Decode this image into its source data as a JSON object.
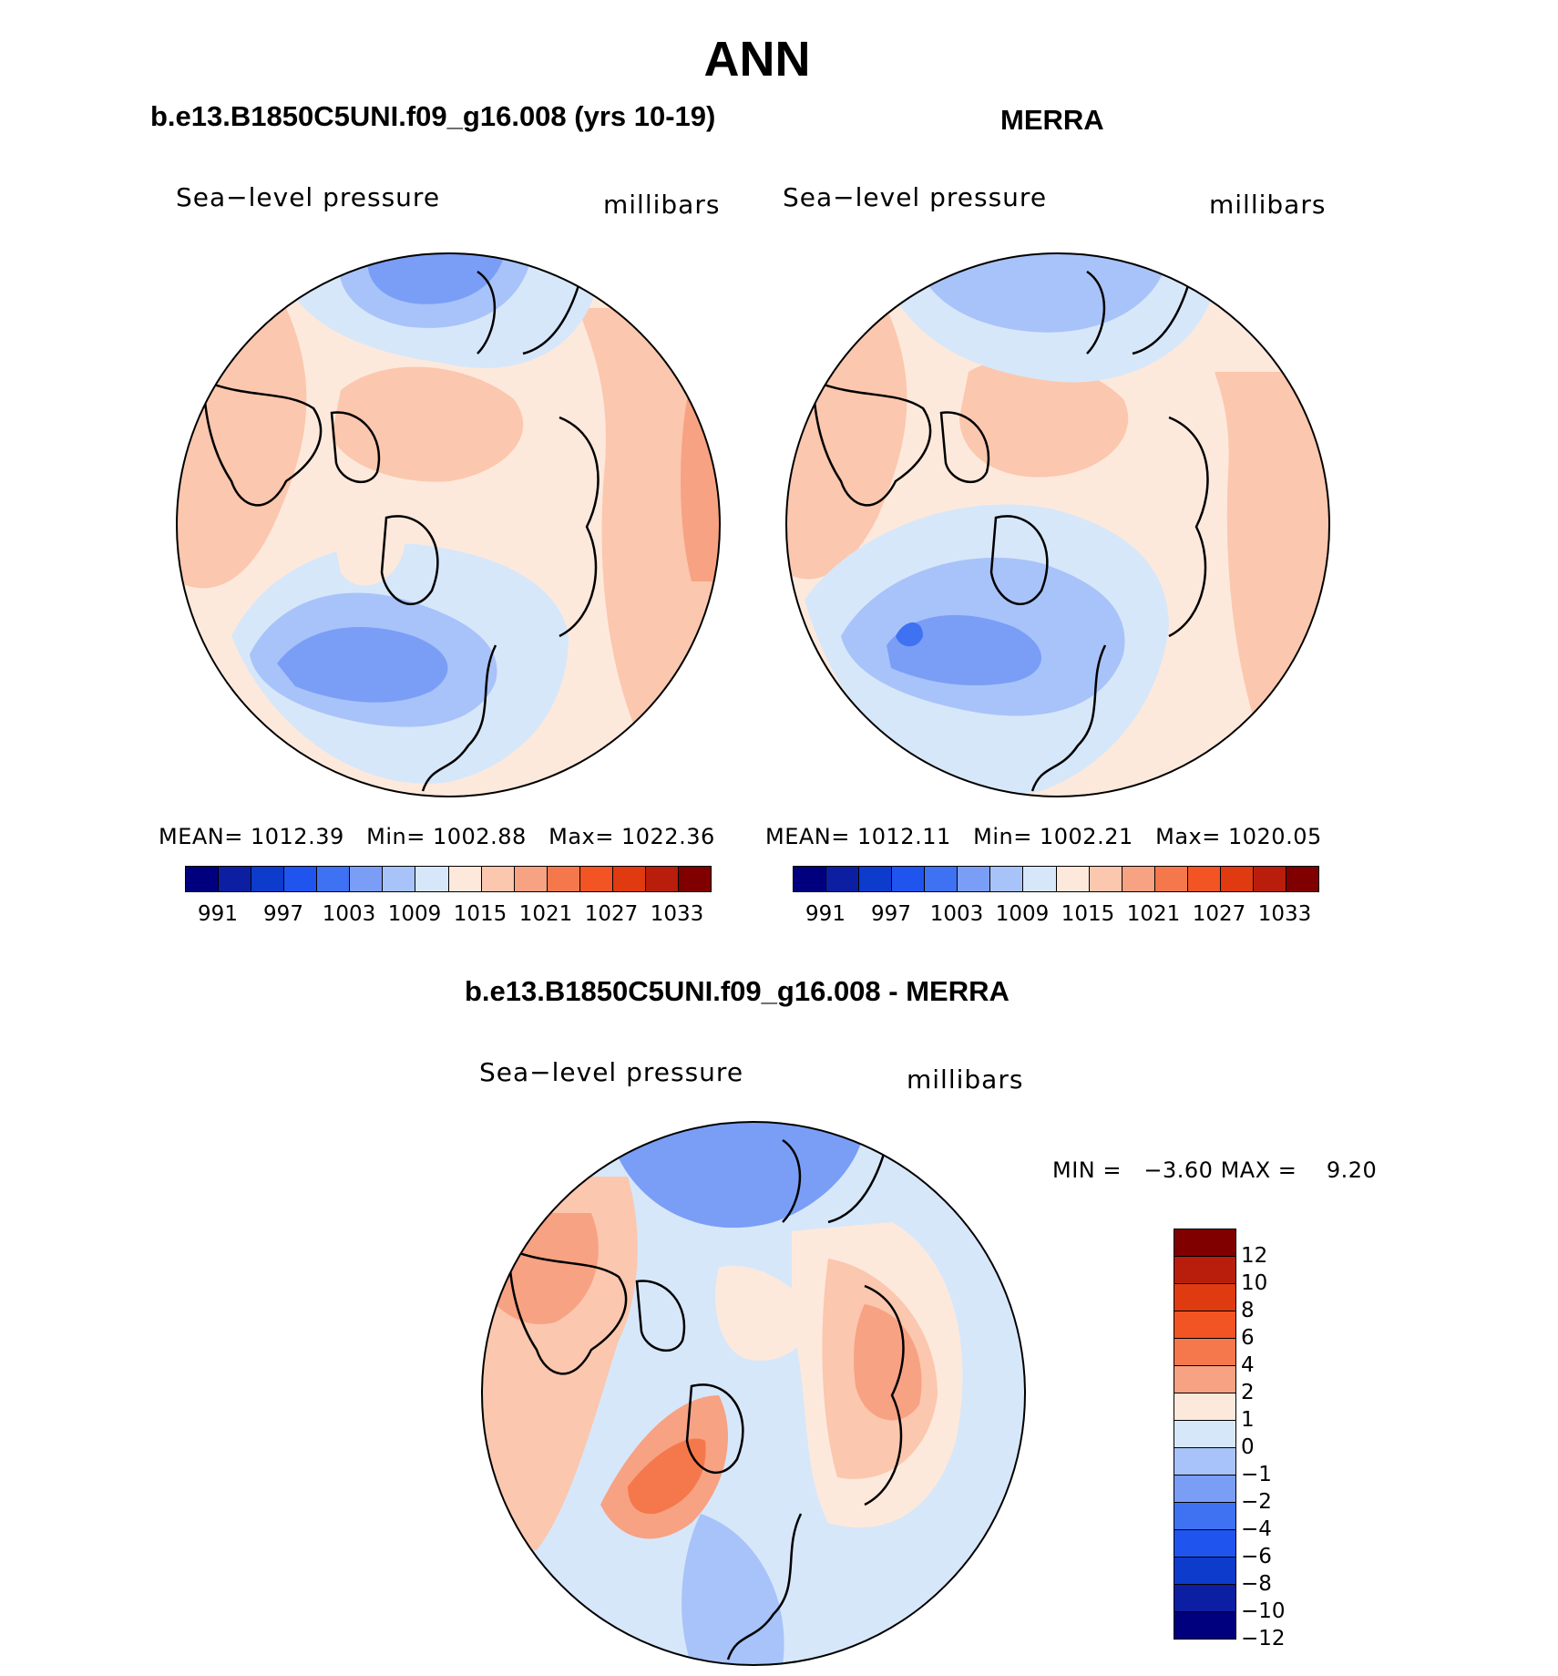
{
  "title": "ANN",
  "panels": [
    {
      "title": "b.e13.B1850C5UNI.f09_g16.008 (yrs 10-19)",
      "variable": "Sea−level pressure",
      "units": "millibars",
      "stats": {
        "mean_label": "MEAN=",
        "mean": "1012.39",
        "min_label": "Min=",
        "min": "1002.88",
        "max_label": "Max=",
        "max": "1022.36"
      }
    },
    {
      "title": "MERRA",
      "variable": "Sea−level pressure",
      "units": "millibars",
      "stats": {
        "mean_label": "MEAN=",
        "mean": "1012.11",
        "min_label": "Min=",
        "min": "1002.21",
        "max_label": "Max=",
        "max": "1020.05"
      }
    }
  ],
  "abs_colorbar": {
    "colors": [
      "#00007f",
      "#0c1fa3",
      "#0d3bcc",
      "#1f55ee",
      "#3f72f2",
      "#7a9ef6",
      "#a8c3f9",
      "#d7e7fa",
      "#fde9dc",
      "#fbc7ae",
      "#f7a283",
      "#f5784c",
      "#f25423",
      "#e03b10",
      "#b81e0b",
      "#800000"
    ],
    "labels": [
      "991",
      "997",
      "1003",
      "1009",
      "1015",
      "1021",
      "1027",
      "1033"
    ]
  },
  "diff_panel": {
    "title": "b.e13.B1850C5UNI.f09_g16.008 - MERRA",
    "variable": "Sea−level pressure",
    "units": "millibars",
    "min_label": "MIN =",
    "min": "−3.60",
    "max_label": "MAX =",
    "max": "9.20"
  },
  "diff_colorbar": {
    "colors": [
      "#800000",
      "#b81e0b",
      "#e03b10",
      "#f25423",
      "#f5784c",
      "#f7a283",
      "#fde9dc",
      "#d7e7fa",
      "#a8c3f9",
      "#7a9ef6",
      "#3f72f2",
      "#1f55ee",
      "#0d3bcc",
      "#0c1fa3",
      "#00007f"
    ],
    "labels": [
      "12",
      "10",
      "8",
      "6",
      "4",
      "2",
      "1",
      "0",
      "−1",
      "−2",
      "−4",
      "−6",
      "−8",
      "−10",
      "−12"
    ]
  },
  "chart_data": [
    {
      "type": "heatmap",
      "title": "b.e13.B1850C5UNI.f09_g16.008 (yrs 10-19)",
      "field": "Sea-level pressure",
      "units": "millibars",
      "projection": "north polar stereographic",
      "mean": 1012.39,
      "min": 1002.88,
      "max": 1022.36,
      "levels": [
        991,
        994,
        997,
        1000,
        1003,
        1006,
        1009,
        1012,
        1015,
        1018,
        1021,
        1024,
        1027,
        1030,
        1033
      ]
    },
    {
      "type": "heatmap",
      "title": "MERRA",
      "field": "Sea-level pressure",
      "units": "millibars",
      "projection": "north polar stereographic",
      "mean": 1012.11,
      "min": 1002.21,
      "max": 1020.05,
      "levels": [
        991,
        994,
        997,
        1000,
        1003,
        1006,
        1009,
        1012,
        1015,
        1018,
        1021,
        1024,
        1027,
        1030,
        1033
      ]
    },
    {
      "type": "heatmap",
      "title": "b.e13.B1850C5UNI.f09_g16.008 - MERRA",
      "field": "Sea-level pressure",
      "units": "millibars",
      "projection": "north polar stereographic",
      "min": -3.6,
      "max": 9.2,
      "levels": [
        -12,
        -10,
        -8,
        -6,
        -4,
        -2,
        -1,
        0,
        1,
        2,
        4,
        6,
        8,
        10,
        12
      ]
    }
  ]
}
